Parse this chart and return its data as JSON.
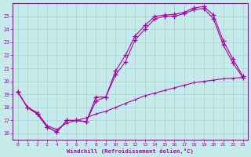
{
  "xlabel": "Windchill (Refroidissement éolien,°C)",
  "xlim": [
    -0.5,
    23.5
  ],
  "ylim": [
    15.5,
    26.0
  ],
  "xticks": [
    0,
    1,
    2,
    3,
    4,
    5,
    6,
    7,
    8,
    9,
    10,
    11,
    12,
    13,
    14,
    15,
    16,
    17,
    18,
    19,
    20,
    21,
    22,
    23
  ],
  "yticks": [
    16,
    17,
    18,
    19,
    20,
    21,
    22,
    23,
    24,
    25
  ],
  "bg_color": "#c5eaea",
  "grid_color": "#a8d4d4",
  "line_color": "#aa00aa",
  "bottom_x": [
    0,
    1,
    2,
    3,
    4,
    5,
    6,
    7,
    8,
    9,
    10,
    11,
    12,
    13,
    14,
    15,
    16,
    17,
    18,
    19,
    20,
    21,
    22,
    23
  ],
  "bottom_y": [
    19.2,
    18.0,
    17.6,
    16.6,
    16.3,
    16.8,
    17.0,
    17.2,
    17.5,
    17.7,
    18.0,
    18.3,
    18.6,
    18.9,
    19.1,
    19.3,
    19.5,
    19.7,
    19.9,
    20.0,
    20.1,
    20.2,
    20.25,
    20.3
  ],
  "mid_x": [
    0,
    1,
    2,
    3,
    4,
    5,
    6,
    7,
    8,
    9,
    10,
    11,
    12,
    13,
    14,
    15,
    16,
    17,
    18,
    19,
    20,
    21,
    22,
    23
  ],
  "mid_y": [
    19.2,
    18.0,
    17.5,
    16.5,
    16.1,
    17.0,
    17.0,
    16.9,
    18.8,
    18.8,
    20.5,
    21.5,
    23.2,
    24.0,
    24.8,
    25.0,
    25.0,
    25.2,
    25.5,
    25.6,
    24.8,
    22.8,
    21.4,
    20.3
  ],
  "top_x": [
    0,
    1,
    2,
    3,
    4,
    5,
    6,
    7,
    8,
    9,
    10,
    11,
    12,
    13,
    14,
    15,
    16,
    17,
    18,
    19,
    20,
    21,
    22,
    23
  ],
  "top_y": [
    19.2,
    18.0,
    17.5,
    16.5,
    16.1,
    17.0,
    17.0,
    16.9,
    18.5,
    18.8,
    20.8,
    22.0,
    23.5,
    24.3,
    25.0,
    25.1,
    25.15,
    25.3,
    25.65,
    25.75,
    25.1,
    23.1,
    21.7,
    20.4
  ],
  "figsize": [
    3.2,
    2.0
  ],
  "dpi": 100
}
